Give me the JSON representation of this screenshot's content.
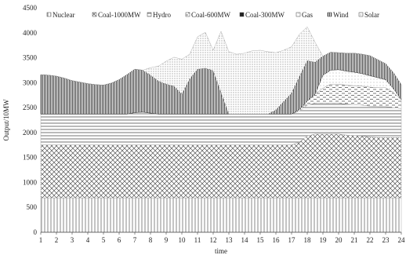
{
  "chart_data": {
    "type": "area",
    "stacked": true,
    "xlabel": "time",
    "ylabel": "Output/10MW",
    "ylim": [
      0,
      4500
    ],
    "yticks": [
      0,
      500,
      1000,
      1500,
      2000,
      2500,
      3000,
      3500,
      4000,
      4500
    ],
    "xlim": [
      1,
      24
    ],
    "x": [
      1,
      1.5,
      2,
      2.5,
      3,
      3.5,
      4,
      4.5,
      5,
      5.5,
      6,
      6.5,
      7,
      7.5,
      8,
      8.5,
      9,
      9.5,
      10,
      10.5,
      11,
      11.5,
      12,
      12.5,
      13,
      13.5,
      14,
      14.5,
      15,
      15.5,
      16,
      16.5,
      17,
      17.5,
      18,
      18.5,
      19,
      19.5,
      20,
      20.5,
      21,
      21.5,
      22,
      22.5,
      23,
      23.5,
      24
    ],
    "legend_position": "top",
    "grid": false,
    "series": [
      {
        "name": "Nuclear",
        "pattern": "vlines",
        "values": [
          690,
          690,
          690,
          690,
          690,
          690,
          690,
          690,
          690,
          690,
          690,
          690,
          690,
          690,
          690,
          690,
          690,
          690,
          690,
          690,
          690,
          690,
          690,
          690,
          690,
          690,
          690,
          690,
          690,
          690,
          690,
          690,
          690,
          690,
          690,
          690,
          690,
          690,
          690,
          690,
          690,
          690,
          690,
          690,
          690,
          690,
          690
        ]
      },
      {
        "name": "Coal-1000MW",
        "pattern": "crosshatch",
        "values": [
          1060,
          1060,
          1060,
          1060,
          1060,
          1060,
          1060,
          1060,
          1060,
          1060,
          1060,
          1060,
          1060,
          1060,
          1060,
          1060,
          1060,
          1060,
          1060,
          1060,
          1060,
          1060,
          1060,
          1060,
          1060,
          1060,
          1060,
          1060,
          1060,
          1060,
          1060,
          1060,
          1060,
          1120,
          1240,
          1280,
          1280,
          1280,
          1280,
          1260,
          1250,
          1240,
          1220,
          1210,
          1210,
          1210,
          1210
        ]
      },
      {
        "name": "Hydro",
        "pattern": "hlines",
        "values": [
          620,
          620,
          620,
          620,
          620,
          620,
          620,
          620,
          620,
          620,
          620,
          620,
          650,
          660,
          640,
          620,
          620,
          620,
          620,
          620,
          620,
          620,
          620,
          620,
          620,
          620,
          620,
          620,
          620,
          620,
          620,
          620,
          620,
          620,
          620,
          620,
          620,
          620,
          620,
          620,
          620,
          620,
          620,
          620,
          620,
          600,
          580
        ]
      },
      {
        "name": "Coal-600MW",
        "pattern": "dashes",
        "values": [
          0,
          0,
          0,
          0,
          0,
          0,
          0,
          0,
          0,
          0,
          0,
          0,
          0,
          0,
          0,
          0,
          0,
          0,
          0,
          0,
          0,
          0,
          0,
          0,
          0,
          0,
          0,
          0,
          0,
          0,
          0,
          0,
          0,
          30,
          80,
          180,
          300,
          380,
          380,
          380,
          380,
          380,
          380,
          380,
          380,
          300,
          180
        ]
      },
      {
        "name": "Coal-300MW",
        "pattern": "solid",
        "values": [
          0,
          0,
          0,
          0,
          0,
          0,
          0,
          0,
          0,
          0,
          0,
          0,
          0,
          0,
          0,
          0,
          0,
          0,
          0,
          0,
          0,
          0,
          0,
          0,
          0,
          0,
          0,
          0,
          0,
          0,
          0,
          0,
          0,
          0,
          0,
          0,
          0,
          0,
          0,
          0,
          0,
          0,
          0,
          0,
          0,
          0,
          0
        ]
      },
      {
        "name": "Gas",
        "pattern": "sparse-dots",
        "values": [
          0,
          0,
          0,
          0,
          0,
          0,
          0,
          0,
          0,
          0,
          0,
          0,
          0,
          0,
          0,
          0,
          0,
          0,
          0,
          0,
          0,
          0,
          0,
          0,
          0,
          0,
          0,
          0,
          0,
          0,
          0,
          0,
          0,
          0,
          0,
          0,
          260,
          280,
          290,
          280,
          270,
          250,
          230,
          200,
          160,
          80,
          0
        ]
      },
      {
        "name": "Wind",
        "pattern": "dense-vlines",
        "values": [
          790,
          780,
          760,
          720,
          670,
          640,
          610,
          590,
          580,
          620,
          690,
          790,
          870,
          840,
          760,
          660,
          600,
          560,
          400,
          700,
          900,
          920,
          870,
          430,
          0,
          0,
          0,
          0,
          0,
          0,
          80,
          250,
          420,
          660,
          810,
          640,
          380,
          360,
          340,
          360,
          380,
          390,
          400,
          360,
          320,
          320,
          300
        ]
      },
      {
        "name": "Solar",
        "pattern": "dots",
        "values": [
          0,
          0,
          0,
          0,
          0,
          0,
          0,
          0,
          0,
          0,
          0,
          0,
          0,
          0,
          150,
          300,
          460,
          580,
          700,
          500,
          650,
          720,
          410,
          1230,
          1250,
          1200,
          1220,
          1270,
          1280,
          1250,
          1150,
          1030,
          930,
          850,
          680,
          400,
          0,
          0,
          0,
          0,
          0,
          0,
          0,
          0,
          0,
          0,
          0
        ]
      }
    ]
  }
}
